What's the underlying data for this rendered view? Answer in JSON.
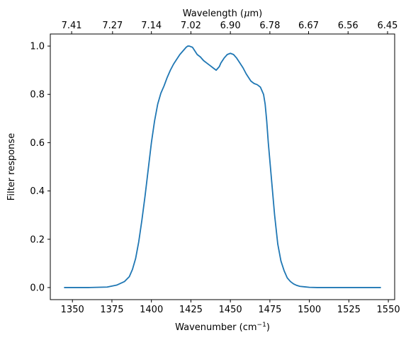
{
  "chart_data": {
    "type": "line",
    "title": "",
    "xlabel": "Wavenumber (cm",
    "xlabel_sup": "−1",
    "xlabel_tail": ")",
    "ylabel": "Filter response",
    "top_xlabel_pre": "Wavelength (",
    "top_xlabel_mu": "μ",
    "top_xlabel_post": "m)",
    "xlim": [
      1336,
      1554
    ],
    "ylim": [
      -0.05,
      1.05
    ],
    "xticks": [
      1350,
      1375,
      1400,
      1425,
      1450,
      1475,
      1500,
      1525,
      1550
    ],
    "yticks": [
      0.0,
      0.2,
      0.4,
      0.6,
      0.8,
      1.0
    ],
    "ytick_labels": [
      "0.0",
      "0.2",
      "0.4",
      "0.6",
      "0.8",
      "1.0"
    ],
    "top_ticks": [
      {
        "at": 1349.5,
        "label": "7.41"
      },
      {
        "at": 1375.4,
        "label": "7.27"
      },
      {
        "at": 1400.0,
        "label": "7.14"
      },
      {
        "at": 1425.0,
        "label": "7.02"
      },
      {
        "at": 1450.0,
        "label": "6.90"
      },
      {
        "at": 1475.0,
        "label": "6.78"
      },
      {
        "at": 1499.5,
        "label": "6.67"
      },
      {
        "at": 1524.5,
        "label": "6.56"
      },
      {
        "at": 1549.5,
        "label": "6.45"
      }
    ],
    "grid": false,
    "series": [
      {
        "color": "#1f77b4",
        "x": [
          1345,
          1360,
          1372,
          1378,
          1383,
          1386,
          1388,
          1390,
          1392,
          1394,
          1396,
          1398,
          1400,
          1402,
          1404,
          1406,
          1408,
          1410,
          1412,
          1414,
          1416,
          1418,
          1420,
          1422,
          1423,
          1424,
          1426,
          1427,
          1429,
          1431,
          1433,
          1435,
          1437,
          1439,
          1441,
          1443,
          1444,
          1446,
          1448,
          1450,
          1452,
          1454,
          1456,
          1458,
          1460,
          1462,
          1463,
          1465,
          1467,
          1469,
          1471,
          1472,
          1473,
          1474,
          1476,
          1478,
          1480,
          1482,
          1484,
          1486,
          1488,
          1490,
          1492,
          1494,
          1497,
          1500,
          1505,
          1510,
          1520,
          1530,
          1545
        ],
        "y": [
          0.0,
          0.0,
          0.002,
          0.01,
          0.025,
          0.045,
          0.075,
          0.12,
          0.19,
          0.28,
          0.38,
          0.49,
          0.6,
          0.69,
          0.76,
          0.805,
          0.835,
          0.87,
          0.9,
          0.925,
          0.945,
          0.965,
          0.98,
          0.995,
          1.0,
          1.0,
          0.995,
          0.985,
          0.965,
          0.955,
          0.94,
          0.93,
          0.92,
          0.91,
          0.9,
          0.915,
          0.93,
          0.95,
          0.965,
          0.97,
          0.965,
          0.95,
          0.93,
          0.91,
          0.885,
          0.865,
          0.855,
          0.845,
          0.84,
          0.83,
          0.8,
          0.76,
          0.69,
          0.6,
          0.45,
          0.3,
          0.18,
          0.11,
          0.07,
          0.04,
          0.025,
          0.015,
          0.009,
          0.005,
          0.003,
          0.001,
          0.0,
          0.0,
          0.0,
          0.0,
          0.0
        ]
      }
    ]
  }
}
